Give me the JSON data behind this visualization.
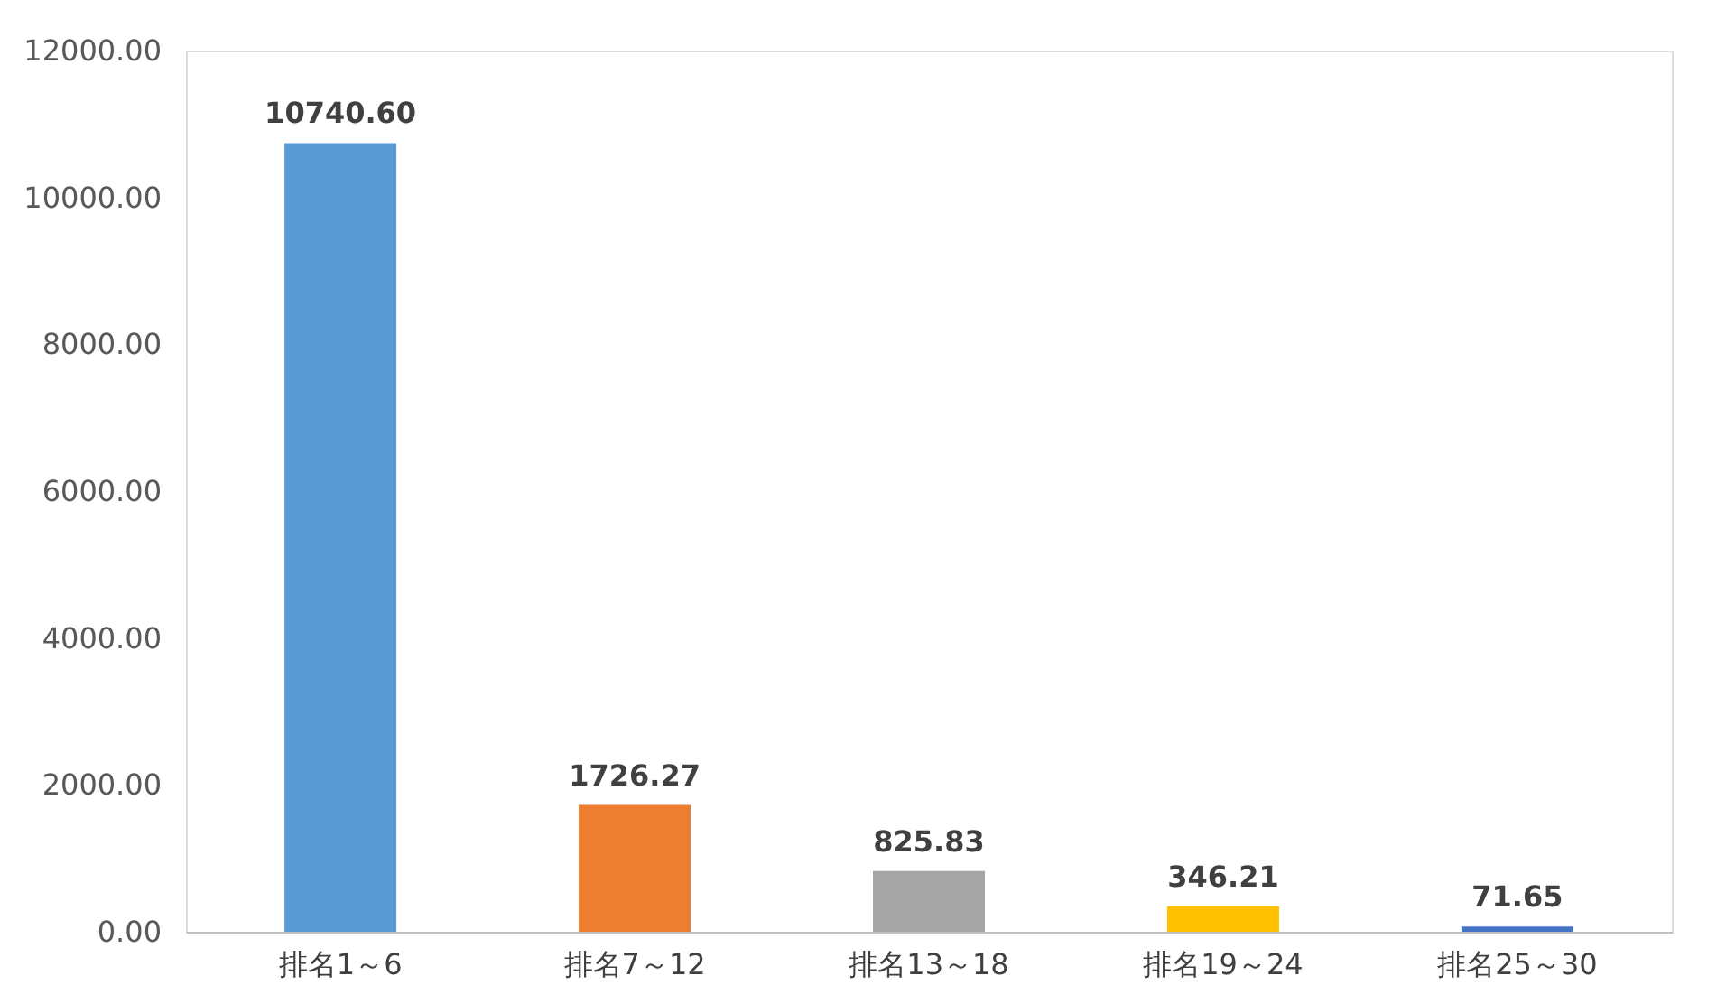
{
  "chart_data": {
    "type": "bar",
    "categories": [
      "排名1～6",
      "排名7～12",
      "排名13～18",
      "排名19～24",
      "排名25～30"
    ],
    "values": [
      10740.6,
      1726.27,
      825.83,
      346.21,
      71.65
    ],
    "colors": [
      "#5b9bd5",
      "#ed7d31",
      "#a5a5a5",
      "#ffc000",
      "#4472c4"
    ],
    "value_labels": [
      "10740.60",
      "1726.27",
      "825.83",
      "346.21",
      "71.65"
    ],
    "ylim": [
      0,
      12000
    ],
    "yticks": [
      {
        "value": 0,
        "label": "0.00"
      },
      {
        "value": 2000,
        "label": "2000.00"
      },
      {
        "value": 4000,
        "label": "4000.00"
      },
      {
        "value": 6000,
        "label": "6000.00"
      },
      {
        "value": 8000,
        "label": "8000.00"
      },
      {
        "value": 10000,
        "label": "10000.00"
      },
      {
        "value": 12000,
        "label": "12000.00"
      }
    ],
    "grid": false
  }
}
